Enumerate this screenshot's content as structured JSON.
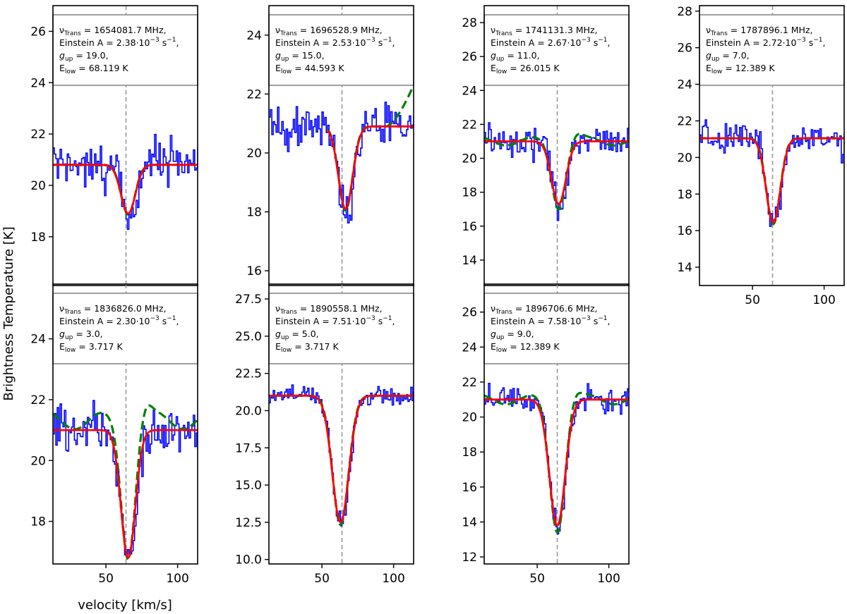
{
  "figure": {
    "ylabel": "Brightness Temperature [K]",
    "xlabel": "velocity [km/s]",
    "vline_velocity": 64,
    "colors": {
      "observed": "#0000ff",
      "model_full": "#008000",
      "model_line": "#ff0000",
      "vline": "#999999"
    },
    "legend_labels": {
      "einstein": "Einstein A = ",
      "gup": "g",
      "gup_sub": "up",
      "elow": "E",
      "elow_sub": "low"
    }
  },
  "chart_data": [
    {
      "type": "line",
      "panel": "1",
      "nu_text": "= 1654081.7 MHz,",
      "A_mant": "2.38",
      "gup": "19.0",
      "elow": "68.119",
      "xlim": [
        13,
        114
      ],
      "ylim": [
        16.1,
        27.0
      ],
      "yticks": [
        "18",
        "20",
        "22",
        "24",
        "26"
      ],
      "xticks": [],
      "ytick_values": [
        18,
        20,
        22,
        24,
        26
      ],
      "xtick_values": [],
      "baseline": 20.8,
      "depth": 1.9,
      "center": 65.5,
      "sigma": 5.0,
      "noise": 1.05,
      "seed": 11,
      "green_baseline": [
        20.8,
        20.8
      ],
      "green_wiggle": 0.0,
      "red_xrange": [
        13,
        114
      ]
    },
    {
      "type": "line",
      "panel": "2",
      "nu_text": "= 1696528.9 MHz,",
      "A_mant": "2.53",
      "gup": "15.0",
      "elow": "44.593",
      "xlim": [
        13,
        114
      ],
      "ylim": [
        15.5,
        25.0
      ],
      "yticks": [
        "16",
        "18",
        "20",
        "22",
        "24"
      ],
      "xticks": [],
      "ytick_values": [
        16,
        18,
        20,
        22,
        24
      ],
      "xtick_values": [],
      "baseline": 20.9,
      "depth": 2.8,
      "center": 66.5,
      "sigma": 5.0,
      "noise": 0.95,
      "seed": 23,
      "green_baseline": [
        20.9,
        22.3
      ],
      "green_wiggle": 0.0,
      "red_xrange": [
        54,
        114
      ]
    },
    {
      "type": "line",
      "panel": "3",
      "nu_text": "= 1741131.3 MHz,",
      "A_mant": "2.67",
      "gup": "11.0",
      "elow": "26.015",
      "xlim": [
        13,
        114
      ],
      "ylim": [
        12.5,
        29.0
      ],
      "yticks": [
        "14",
        "16",
        "18",
        "20",
        "22",
        "24",
        "26",
        "28"
      ],
      "xticks": [],
      "ytick_values": [
        14,
        16,
        18,
        20,
        22,
        24,
        26,
        28
      ],
      "xtick_values": [],
      "baseline": 21.0,
      "depth": 3.7,
      "center": 65.0,
      "sigma": 5.0,
      "noise": 1.15,
      "seed": 37,
      "green_baseline": [
        21.0,
        21.0
      ],
      "green_wiggle": 0.4,
      "red_xrange": [
        13,
        114
      ]
    },
    {
      "type": "line",
      "panel": "4",
      "nu_text": "= 1787896.1 MHz,",
      "A_mant": "2.72",
      "gup": "7.0",
      "elow": "12.389",
      "xlim": [
        13,
        114
      ],
      "ylim": [
        13.0,
        28.3
      ],
      "yticks": [
        "14",
        "16",
        "18",
        "20",
        "22",
        "24",
        "26",
        "28"
      ],
      "xticks": [
        "50",
        "100"
      ],
      "ytick_values": [
        14,
        16,
        18,
        20,
        22,
        24,
        26,
        28
      ],
      "xtick_values": [
        50,
        100
      ],
      "baseline": 21.05,
      "depth": 4.6,
      "center": 64.5,
      "sigma": 5.0,
      "noise": 1.1,
      "seed": 41,
      "green_baseline": [
        21.05,
        21.05
      ],
      "green_wiggle": 0.0,
      "red_xrange": [
        13,
        114
      ]
    },
    {
      "type": "line",
      "panel": "5",
      "nu_text": "= 1836826.0 MHz,",
      "A_mant": "2.30",
      "gup": "3.0",
      "elow": "3.717",
      "xlim": [
        13,
        114
      ],
      "ylim": [
        16.6,
        25.8
      ],
      "yticks": [
        "18",
        "20",
        "22",
        "24"
      ],
      "xticks": [
        "50",
        "100"
      ],
      "ytick_values": [
        18,
        20,
        22,
        24
      ],
      "xtick_values": [
        50,
        100
      ],
      "baseline": 21.0,
      "depth": 4.2,
      "center": 65.5,
      "sigma": 5.0,
      "noise": 1.0,
      "seed": 53,
      "green_baseline": [
        21.3,
        21.3
      ],
      "green_wiggle": 0.45,
      "red_xrange": [
        13,
        114
      ]
    },
    {
      "type": "line",
      "panel": "6",
      "nu_text": "= 1890558.1 MHz,",
      "A_mant": "7.51",
      "gup": "5.0",
      "elow": "3.717",
      "xlim": [
        13,
        114
      ],
      "ylim": [
        9.7,
        28.5
      ],
      "yticks": [
        "10.0",
        "12.5",
        "15.0",
        "17.5",
        "20.0",
        "22.5",
        "25.0",
        "27.5"
      ],
      "xticks": [
        "50",
        "100"
      ],
      "ytick_values": [
        10,
        12.5,
        15,
        17.5,
        20,
        22.5,
        25,
        27.5
      ],
      "xtick_values": [
        50,
        100
      ],
      "baseline": 21.0,
      "depth": 8.5,
      "center": 63.0,
      "sigma": 5.8,
      "noise": 0.85,
      "seed": 67,
      "green_baseline": [
        21.0,
        21.0
      ],
      "green_wiggle": 0.0,
      "red_xrange": [
        13,
        114
      ]
    },
    {
      "type": "line",
      "panel": "7",
      "nu_text": "= 1896706.6 MHz,",
      "A_mant": "7.58",
      "gup": "9.0",
      "elow": "12.389",
      "xlim": [
        13,
        114
      ],
      "ylim": [
        11.6,
        27.6
      ],
      "yticks": [
        "12",
        "14",
        "16",
        "18",
        "20",
        "22",
        "24",
        "26"
      ],
      "xticks": [
        "50",
        "100"
      ],
      "ytick_values": [
        12,
        14,
        16,
        18,
        20,
        22,
        24,
        26
      ],
      "xtick_values": [
        50,
        100
      ],
      "baseline": 21.0,
      "depth": 7.2,
      "center": 64.0,
      "sigma": 5.5,
      "noise": 0.85,
      "seed": 79,
      "green_baseline": [
        21.0,
        21.0
      ],
      "green_wiggle": 0.45,
      "red_xrange": [
        13,
        114
      ]
    }
  ]
}
